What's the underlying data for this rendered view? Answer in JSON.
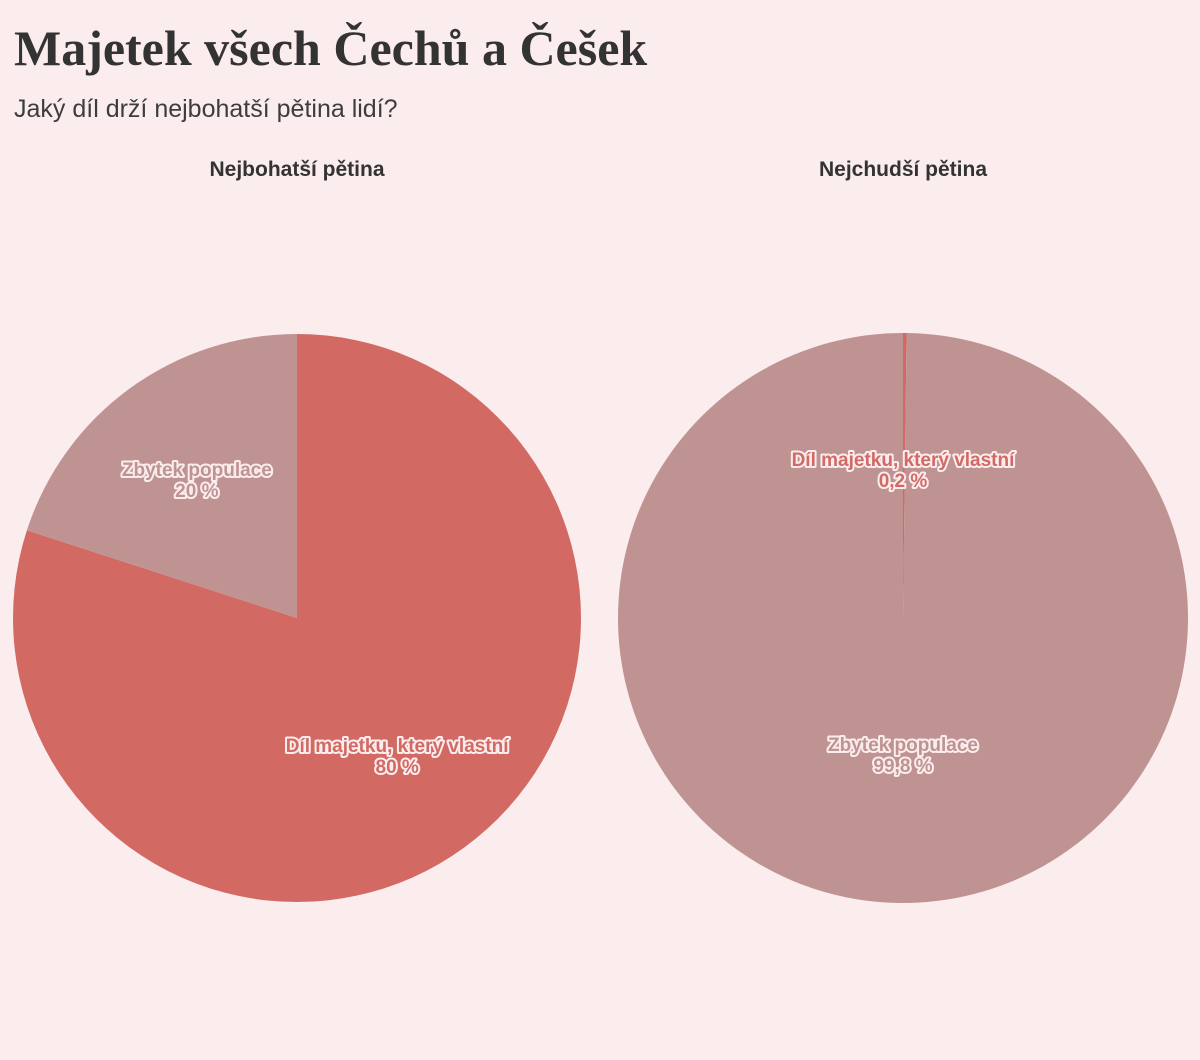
{
  "title": "Majetek všech Čechů a Češek",
  "subtitle": "Jaký díl drží nejbohatší pětina lidí?",
  "colors": {
    "background": "#fbecee",
    "owned": "#d26a63",
    "rest": "#bf9391"
  },
  "chart_data": [
    {
      "type": "pie",
      "title": "Nejbohatší pětina",
      "slices": [
        {
          "label": "Díl majetku, který vlastní",
          "value": 80,
          "value_label": "80 %",
          "color": "#d26a63"
        },
        {
          "label": "Zbytek populace",
          "value": 20,
          "value_label": "20 %",
          "color": "#bf9391"
        }
      ]
    },
    {
      "type": "pie",
      "title": "Nejchudší pětina",
      "slices": [
        {
          "label": "Díl majetku, který vlastní",
          "value": 0.2,
          "value_label": "0,2 %",
          "color": "#d26a63"
        },
        {
          "label": "Zbytek populace",
          "value": 99.8,
          "value_label": "99,8 %",
          "color": "#bf9391"
        }
      ]
    }
  ]
}
